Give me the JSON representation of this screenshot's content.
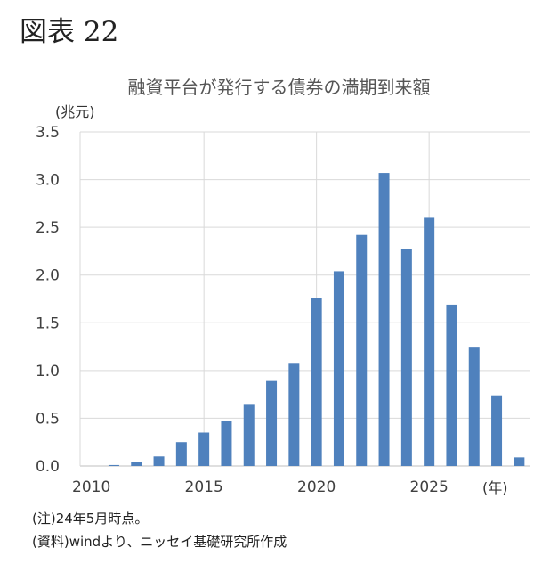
{
  "figure_label": "図表 22",
  "notes": {
    "note1": "(注)24年5月時点。",
    "note2": "(資料)windより、ニッセイ基礎研究所作成"
  },
  "chart_data": {
    "type": "bar",
    "title": "融資平台が発行する債券の満期到来額",
    "ylabel": "(兆元)",
    "xlabel": "(年)",
    "ylim": [
      0,
      3.5
    ],
    "yticks": [
      "0.0",
      "0.5",
      "1.0",
      "1.5",
      "2.0",
      "2.5",
      "3.0",
      "3.5"
    ],
    "xtick_labels": [
      "2010",
      "2015",
      "2020",
      "2025"
    ],
    "categories": [
      2010,
      2011,
      2012,
      2013,
      2014,
      2015,
      2016,
      2017,
      2018,
      2019,
      2020,
      2021,
      2022,
      2023,
      2024,
      2025,
      2026,
      2027,
      2028,
      2029
    ],
    "values": [
      0.0,
      0.01,
      0.04,
      0.1,
      0.25,
      0.35,
      0.47,
      0.65,
      0.89,
      1.08,
      1.76,
      2.04,
      2.42,
      3.07,
      2.27,
      2.6,
      1.69,
      1.24,
      0.74,
      0.09
    ],
    "bar_color": "#4f81bd",
    "grid": true
  }
}
